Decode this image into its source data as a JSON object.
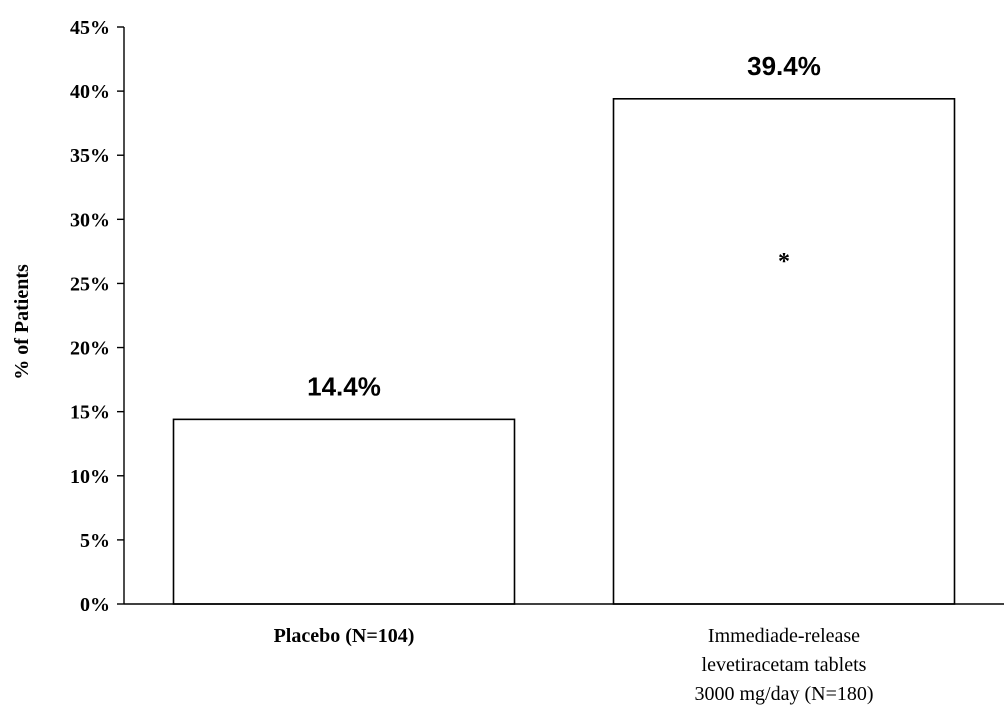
{
  "chart_data": {
    "type": "bar",
    "ylabel": "% of Patients",
    "ylim": [
      0,
      45
    ],
    "yticks": [
      "0%",
      "5%",
      "10%",
      "15%",
      "20%",
      "25%",
      "30%",
      "35%",
      "40%",
      "45%"
    ],
    "categories": [
      [
        "Placebo (N=104)"
      ],
      [
        "Immediade-release",
        "levetiracetam tablets",
        "3000 mg/day (N=180)"
      ]
    ],
    "values": [
      14.4,
      39.4
    ],
    "data_labels": [
      "14.4%",
      "39.4%"
    ],
    "annotations": [
      "",
      "*"
    ],
    "grid": false,
    "legend": "none"
  }
}
